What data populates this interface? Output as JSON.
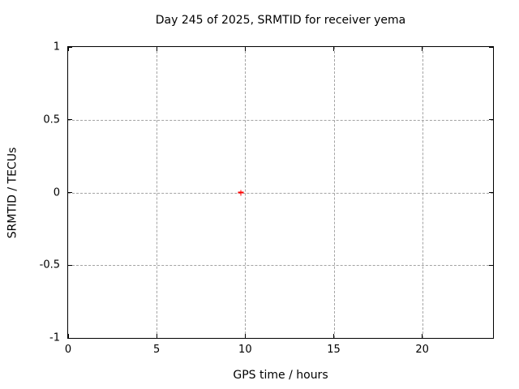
{
  "chart_data": {
    "type": "scatter",
    "title": "Day 245 of 2025, SRMTID for receiver yema",
    "xlabel": "GPS time / hours",
    "ylabel": "SRMTID / TECUs",
    "xlim": [
      0,
      24
    ],
    "ylim": [
      -1,
      1
    ],
    "xticks": [
      0,
      5,
      10,
      15,
      20
    ],
    "xtick_labels": [
      "0",
      "5",
      "10",
      "15",
      "20"
    ],
    "yticks": [
      1,
      0.5,
      0,
      -0.5,
      -1
    ],
    "ytick_labels": [
      "1",
      "0.5",
      "0",
      "-0.5",
      "-1"
    ],
    "grid": true,
    "legend": "none",
    "series": [
      {
        "marker": "plus",
        "color": "#ff0000",
        "points": [
          {
            "x": 9.75,
            "y": 0.0
          }
        ]
      }
    ]
  },
  "colors": {
    "background": "#ffffff",
    "axis": "#000000",
    "grid": "#a3a3a3",
    "text": "#000000",
    "point": "#ff0000"
  }
}
